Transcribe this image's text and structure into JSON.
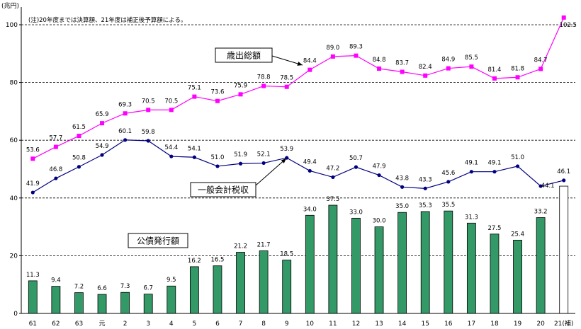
{
  "chart_data": {
    "type": "bar",
    "note": "(注)20年度までは決算額、21年度は補正後予算額による。",
    "ylabel": "(兆円)",
    "ylim": [
      0,
      105
    ],
    "yticks": [
      0,
      20,
      40,
      60,
      80,
      100
    ],
    "grid": true,
    "categories": [
      "61",
      "62",
      "63",
      "元",
      "2",
      "3",
      "4",
      "5",
      "6",
      "7",
      "8",
      "9",
      "10",
      "11",
      "12",
      "13",
      "14",
      "15",
      "16",
      "17",
      "18",
      "19",
      "20",
      "21(補)"
    ],
    "series": [
      {
        "name": "歳出総額",
        "kind": "line",
        "color": "#ff00ff",
        "values": [
          53.6,
          57.7,
          61.5,
          65.9,
          69.3,
          70.5,
          70.5,
          75.1,
          73.6,
          75.9,
          78.8,
          78.5,
          84.4,
          89.0,
          89.3,
          84.8,
          83.7,
          82.4,
          84.9,
          85.5,
          81.4,
          81.8,
          84.7,
          102.5
        ],
        "labels": [
          "53.6",
          "57.7",
          "61.5",
          "65.9",
          "69.3",
          "70.5",
          "70.5",
          "75.1",
          "73.6",
          "75.9",
          "78.8",
          "78.5",
          "84.4",
          "89.0",
          "89.3",
          "84.8",
          "83.7",
          "82.4",
          "84.9",
          "85.5",
          "81.4",
          "81.8",
          "84.7",
          "102.5"
        ]
      },
      {
        "name": "一般会計税収",
        "kind": "line",
        "color": "#000080",
        "values": [
          41.9,
          46.8,
          50.8,
          54.9,
          60.1,
          59.8,
          54.4,
          54.1,
          51.0,
          51.9,
          52.1,
          53.9,
          49.4,
          47.2,
          50.7,
          47.9,
          43.8,
          43.3,
          45.6,
          49.1,
          49.1,
          51.0,
          44.1,
          46.1
        ],
        "labels": [
          "41.9",
          "46.8",
          "50.8",
          "54.9",
          "60.1",
          "59.8",
          "54.4",
          "54.1",
          "51.0",
          "51.9",
          "52.1",
          "53.9",
          "49.4",
          "47.2",
          "50.7",
          "47.9",
          "43.8",
          "43.3",
          "45.6",
          "49.1",
          "49.1",
          "51.0",
          "44.1",
          "46.1"
        ]
      },
      {
        "name": "公債発行額",
        "kind": "bar",
        "color": "#339966",
        "last_bar_color": "#ffffff",
        "values": [
          11.3,
          9.4,
          7.2,
          6.6,
          7.3,
          6.7,
          9.5,
          16.2,
          16.5,
          21.2,
          21.7,
          18.5,
          34.0,
          37.5,
          33.0,
          30.0,
          35.0,
          35.3,
          35.5,
          31.3,
          27.5,
          25.4,
          33.2,
          44.1
        ],
        "labels": [
          "11.3",
          "9.4",
          "7.2",
          "6.6",
          "7.3",
          "6.7",
          "9.5",
          "16.2",
          "16.5",
          "21.2",
          "21.7",
          "18.5",
          "34.0",
          "37.5",
          "33.0",
          "30.0",
          "35.0",
          "35.3",
          "35.5",
          "31.3",
          "27.5",
          "25.4",
          "33.2",
          ""
        ]
      }
    ]
  }
}
